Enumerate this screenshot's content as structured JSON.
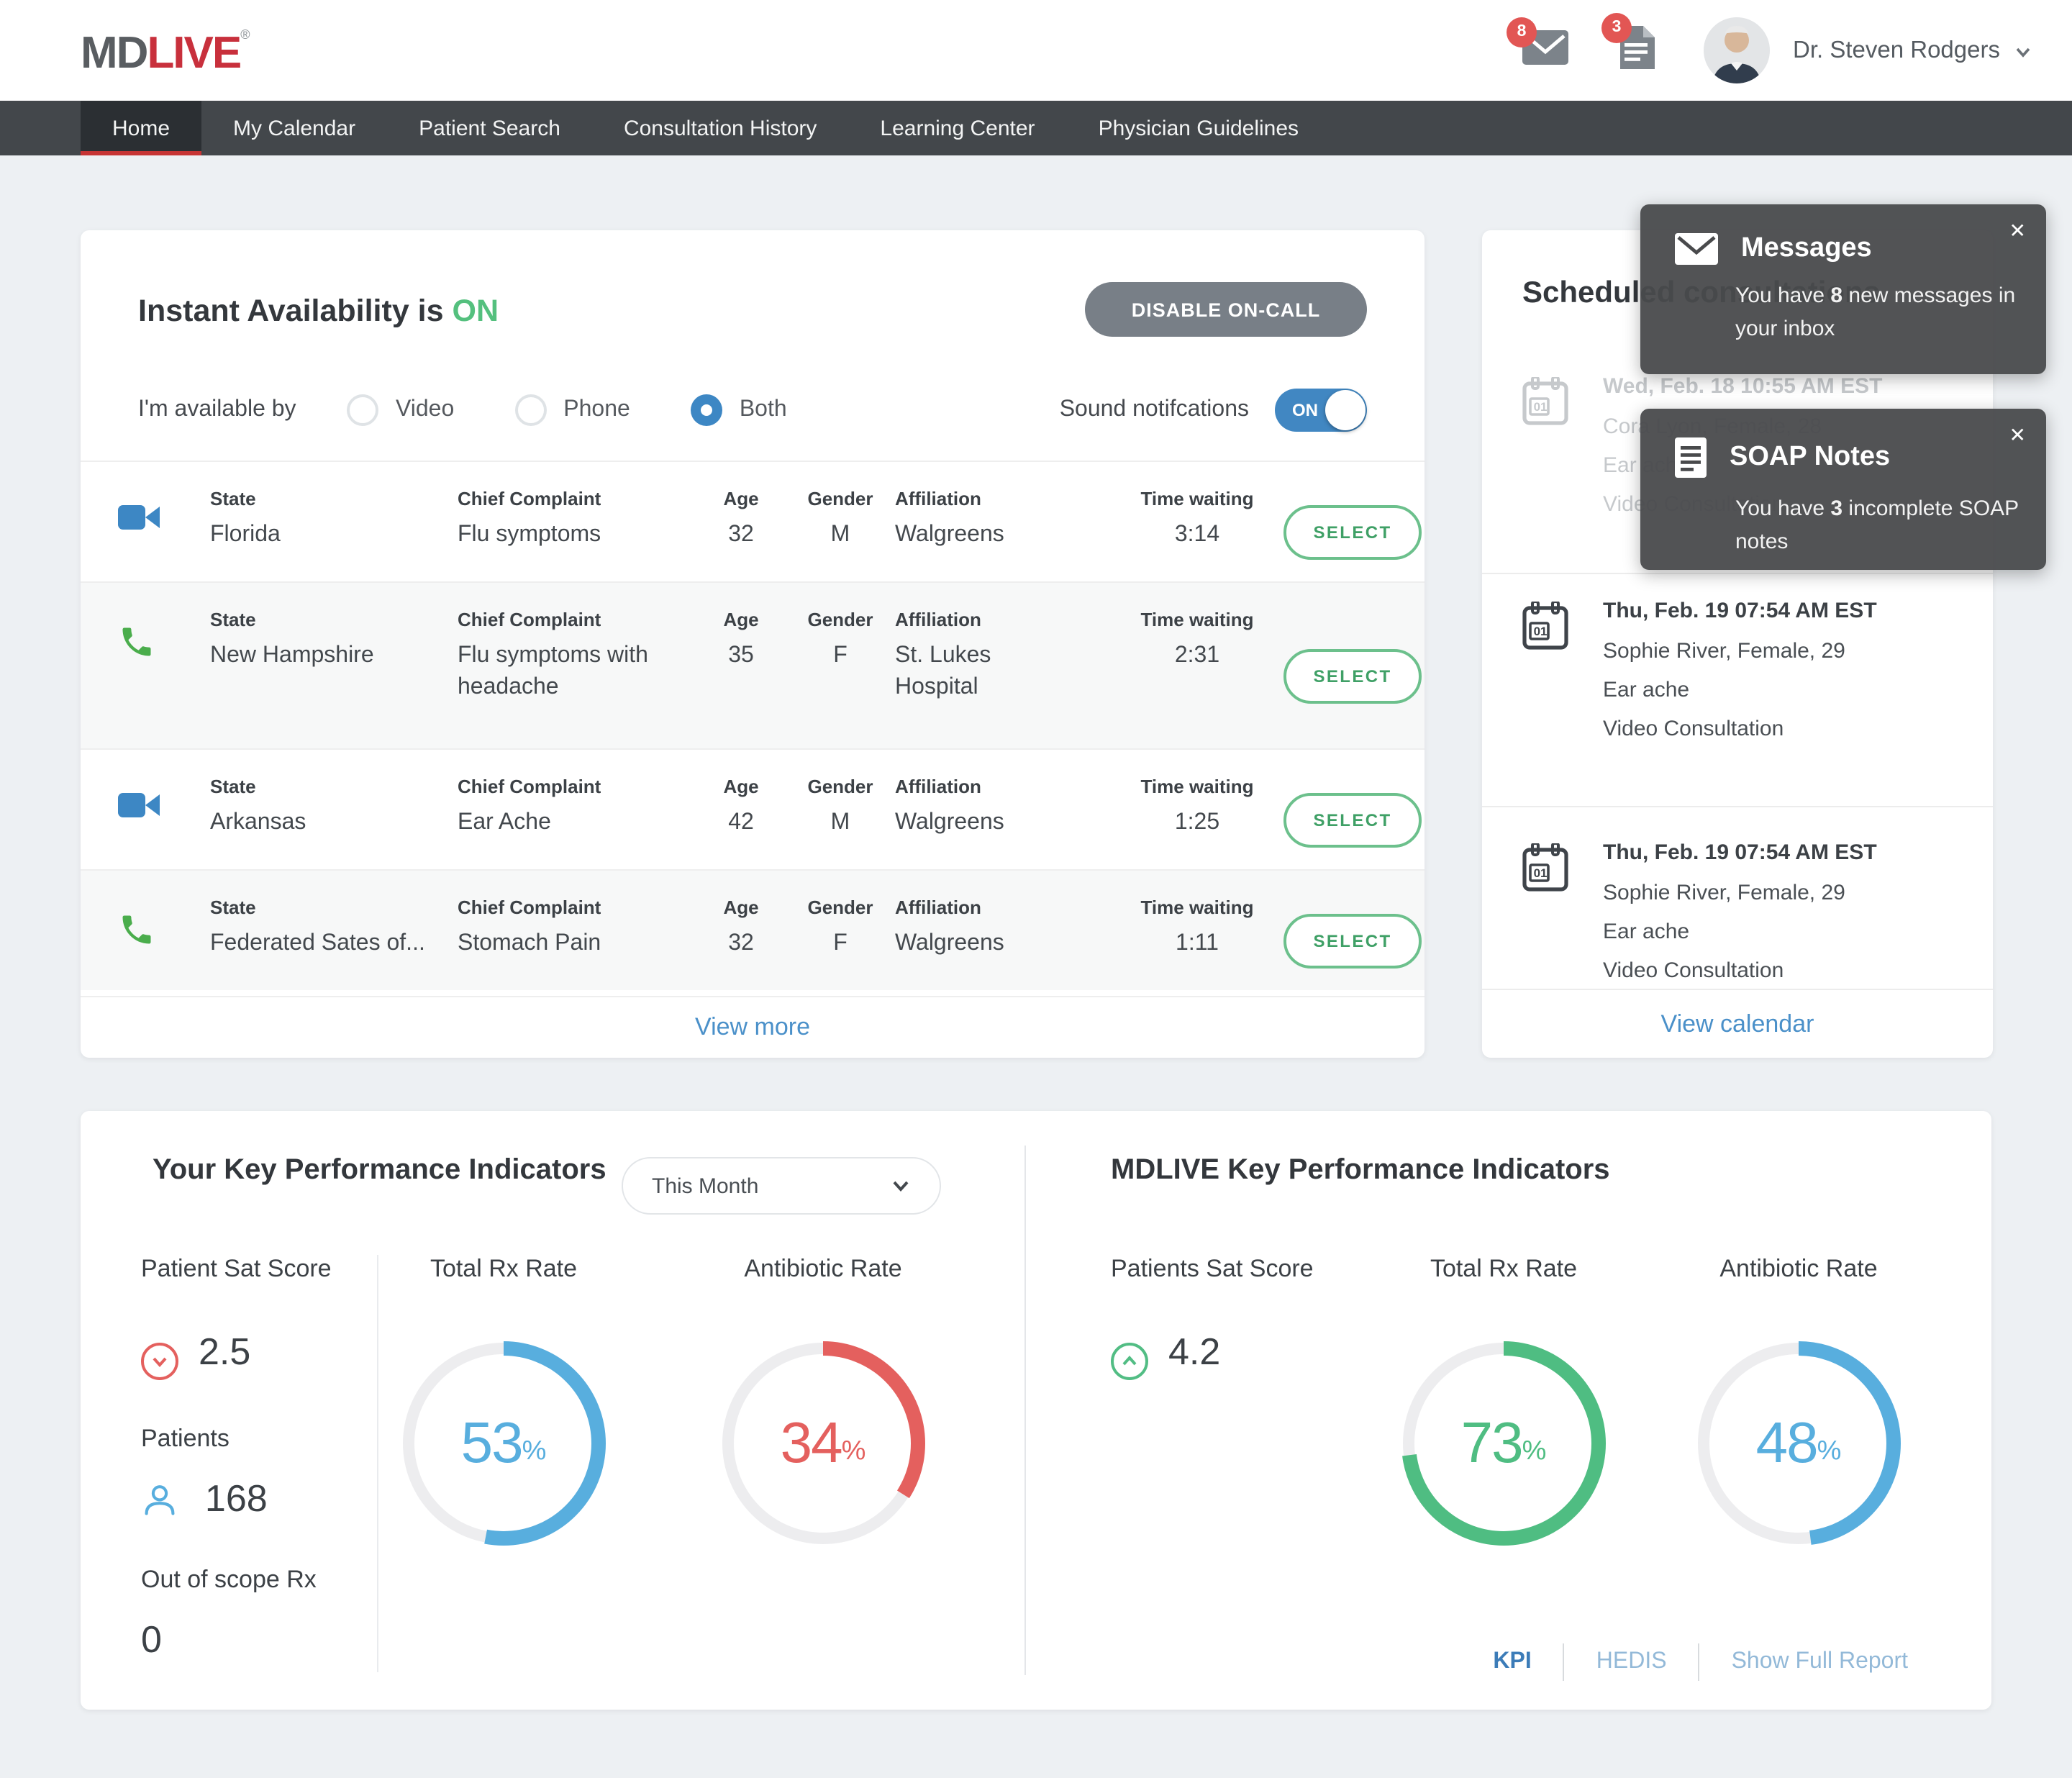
{
  "header": {
    "logo_md": "MD",
    "logo_live": "LIVE",
    "logo_reg": "®",
    "mail_badge": "8",
    "notes_badge": "3",
    "user_name": "Dr. Steven Rodgers"
  },
  "nav": {
    "items": [
      {
        "label": "Home",
        "state": "active"
      },
      {
        "label": "My Calendar",
        "state": ""
      },
      {
        "label": "Patient Search",
        "state": ""
      },
      {
        "label": "Consultation History",
        "state": ""
      },
      {
        "label": "Learning Center",
        "state": ""
      },
      {
        "label": "Physician Guidelines",
        "state": ""
      }
    ]
  },
  "availability": {
    "title_prefix": "Instant Availability is ",
    "status": "ON",
    "disable_button": "DISABLE ON-CALL",
    "available_by": "I'm available by",
    "options": [
      {
        "label": "Video",
        "state": ""
      },
      {
        "label": "Phone",
        "state": ""
      },
      {
        "label": "Both",
        "state": "selected"
      }
    ],
    "sound_label": "Sound notifcations",
    "sound_state": "ON"
  },
  "queue": {
    "columns": {
      "state": "State",
      "complaint": "Chief Complaint",
      "age": "Age",
      "gender": "Gender",
      "affiliation": "Affiliation",
      "wait": "Time waiting"
    },
    "select_label": "SELECT",
    "view_more": "View more",
    "rows": [
      {
        "type": "video",
        "state": "Florida",
        "complaint": "Flu symptoms",
        "age": "32",
        "gender": "M",
        "affiliation": "Walgreens",
        "wait": "3:14"
      },
      {
        "type": "phone",
        "state": "New Hampshire",
        "complaint": "Flu symptoms with headache",
        "age": "35",
        "gender": "F",
        "affiliation": "St. Lukes Hospital",
        "wait": "2:31"
      },
      {
        "type": "video",
        "state": "Arkansas",
        "complaint": "Ear Ache",
        "age": "42",
        "gender": "M",
        "affiliation": "Walgreens",
        "wait": "1:25"
      },
      {
        "type": "phone",
        "state": "Federated Sates of...",
        "complaint": "Stomach Pain",
        "age": "32",
        "gender": "F",
        "affiliation": "Walgreens",
        "wait": "1:11"
      }
    ]
  },
  "schedule": {
    "title": "Scheduled consultations",
    "view_calendar": "View calendar",
    "entries": [
      {
        "datetime": "Wed, Feb. 18 10:55 AM EST",
        "patient": "Cora Lyon, Female, 28",
        "complaint": "Ear ache",
        "type": "Video Consultation",
        "state": "faded"
      },
      {
        "datetime": "Thu, Feb. 19 07:54 AM EST",
        "patient": "Sophie River, Female, 29",
        "complaint": "Ear ache",
        "type": "Video Consultation",
        "state": ""
      },
      {
        "datetime": "Thu, Feb. 19 07:54 AM EST",
        "patient": "Sophie River, Female, 29",
        "complaint": "Ear ache",
        "type": "Video Consultation",
        "state": ""
      }
    ]
  },
  "toasts": [
    {
      "title": "Messages",
      "body_pre": "You have ",
      "count": "8",
      "body_post": " new messages in your inbox",
      "close": "✕"
    },
    {
      "title": "SOAP Notes",
      "body_pre": "You have ",
      "count": "3",
      "body_post": " incomplete SOAP notes",
      "close": "✕"
    }
  ],
  "kpi_local": {
    "title": "Your Key Performance Indicators",
    "period": "This Month",
    "sat_label": "Patient Sat Score",
    "sat_value": "2.5",
    "sat_trend": "down",
    "patients_label": "Patients",
    "patients_value": "168",
    "oos_label": "Out of scope Rx",
    "oos_value": "0",
    "pct_sign": "%",
    "donuts": [
      {
        "label": "Total Rx Rate",
        "pct": 53,
        "color": "#58aede"
      },
      {
        "label": "Antibiotic Rate",
        "pct": 34,
        "color": "#e4605e"
      }
    ]
  },
  "kpi_mdlive": {
    "title": "MDLIVE Key Performance Indicators",
    "sat_label": "Patients Sat Score",
    "sat_value": "4.2",
    "sat_trend": "up",
    "donuts": [
      {
        "label": "Total Rx Rate",
        "pct": 73,
        "color": "#4fbd82"
      },
      {
        "label": "Antibiotic Rate",
        "pct": 48,
        "color": "#58aede"
      }
    ],
    "links": [
      {
        "label": "KPI",
        "state": "active"
      },
      {
        "label": "HEDIS",
        "state": ""
      },
      {
        "label": "Show Full Report",
        "state": ""
      }
    ]
  },
  "colors": {
    "accent_red": "#c8303c",
    "blue": "#4187c2",
    "green": "#54c07e",
    "nav_bg": "#43474b"
  }
}
